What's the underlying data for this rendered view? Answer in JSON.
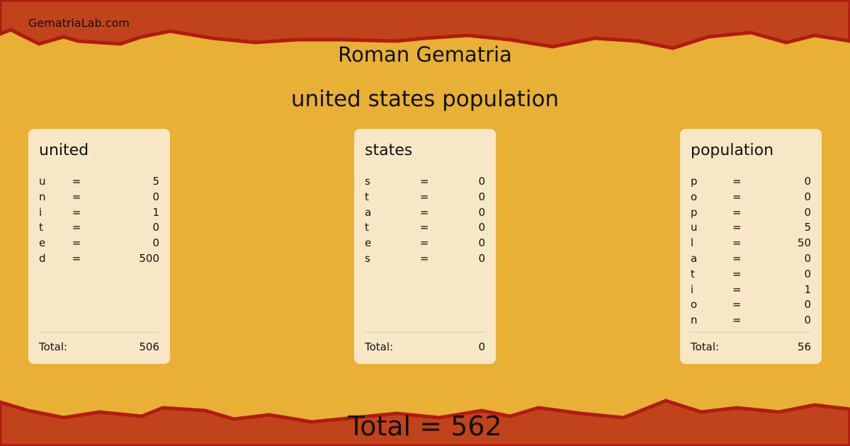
{
  "site": "GematriaLab.com",
  "title": "Roman Gematria",
  "phrase": "united states population",
  "colors": {
    "banner": "#c0431c",
    "edge": "#b01c10",
    "background": "#e8b035",
    "card": "#f8e7c6"
  },
  "words": [
    {
      "word": "united",
      "letters": [
        [
          "u",
          "=",
          "5"
        ],
        [
          "n",
          "=",
          "0"
        ],
        [
          "i",
          "=",
          "1"
        ],
        [
          "t",
          "=",
          "0"
        ],
        [
          "e",
          "=",
          "0"
        ],
        [
          "d",
          "=",
          "500"
        ]
      ],
      "total_label": "Total:",
      "total": "506"
    },
    {
      "word": "states",
      "letters": [
        [
          "s",
          "=",
          "0"
        ],
        [
          "t",
          "=",
          "0"
        ],
        [
          "a",
          "=",
          "0"
        ],
        [
          "t",
          "=",
          "0"
        ],
        [
          "e",
          "=",
          "0"
        ],
        [
          "s",
          "=",
          "0"
        ]
      ],
      "total_label": "Total:",
      "total": "0"
    },
    {
      "word": "population",
      "letters": [
        [
          "p",
          "=",
          "0"
        ],
        [
          "o",
          "=",
          "0"
        ],
        [
          "p",
          "=",
          "0"
        ],
        [
          "u",
          "=",
          "5"
        ],
        [
          "l",
          "=",
          "50"
        ],
        [
          "a",
          "=",
          "0"
        ],
        [
          "t",
          "=",
          "0"
        ],
        [
          "i",
          "=",
          "1"
        ],
        [
          "o",
          "=",
          "0"
        ],
        [
          "n",
          "=",
          "0"
        ]
      ],
      "total_label": "Total:",
      "total": "56"
    }
  ],
  "grand_total": "Total  = 562"
}
